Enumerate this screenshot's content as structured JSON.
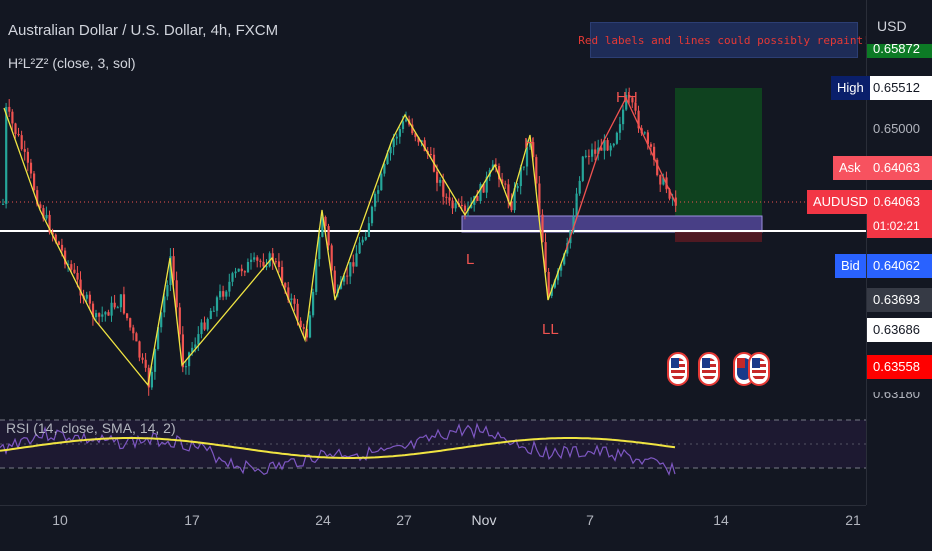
{
  "header": {
    "symbol_title": "Australian Dollar / U.S. Dollar, 4h, FXCM",
    "indicator_label": "H²L²Z² (close, 3, sol)",
    "rsi_label": "RSI (14, close, SMA, 14, 2)",
    "warning": "Red labels and lines could possibly repaint!"
  },
  "price_axis": {
    "currency": "USD",
    "partial_top": "0.65872",
    "high_tag": "High",
    "high_value": "0.65512",
    "level_065": "0.65000",
    "ask_tag": "Ask",
    "ask_value": "0.64063",
    "symbol_tag": "AUDUSD",
    "last_value": "0.64063",
    "countdown": "01:02:21",
    "bid_tag": "Bid",
    "bid_value": "0.64062",
    "level_a": "0.63693",
    "level_b": "0.63686",
    "level_c": "0.63558",
    "partial_bottom": "0.63180"
  },
  "pivot_labels": {
    "hh": "HH",
    "h": "H",
    "l": "L",
    "ll": "LL"
  },
  "time_axis": [
    "10",
    "17",
    "24",
    "27",
    "Nov",
    "7",
    "14",
    "21"
  ],
  "colors": {
    "up": "#26a69a",
    "down": "#ef5350",
    "zigzag": "#f0e442",
    "rsi": "#7e57c2",
    "rsi_ma": "#f0e442",
    "high_tag": "#0a1f6b",
    "bid": "#2962ff",
    "ask": "#f7525f",
    "green_box": "#0f4a1e"
  },
  "events": [
    {
      "icon": "us-flag-icon"
    },
    {
      "icon": "us-flag-icon"
    },
    {
      "icon": "au-flag-icon"
    },
    {
      "icon": "us-flag-icon"
    }
  ]
}
